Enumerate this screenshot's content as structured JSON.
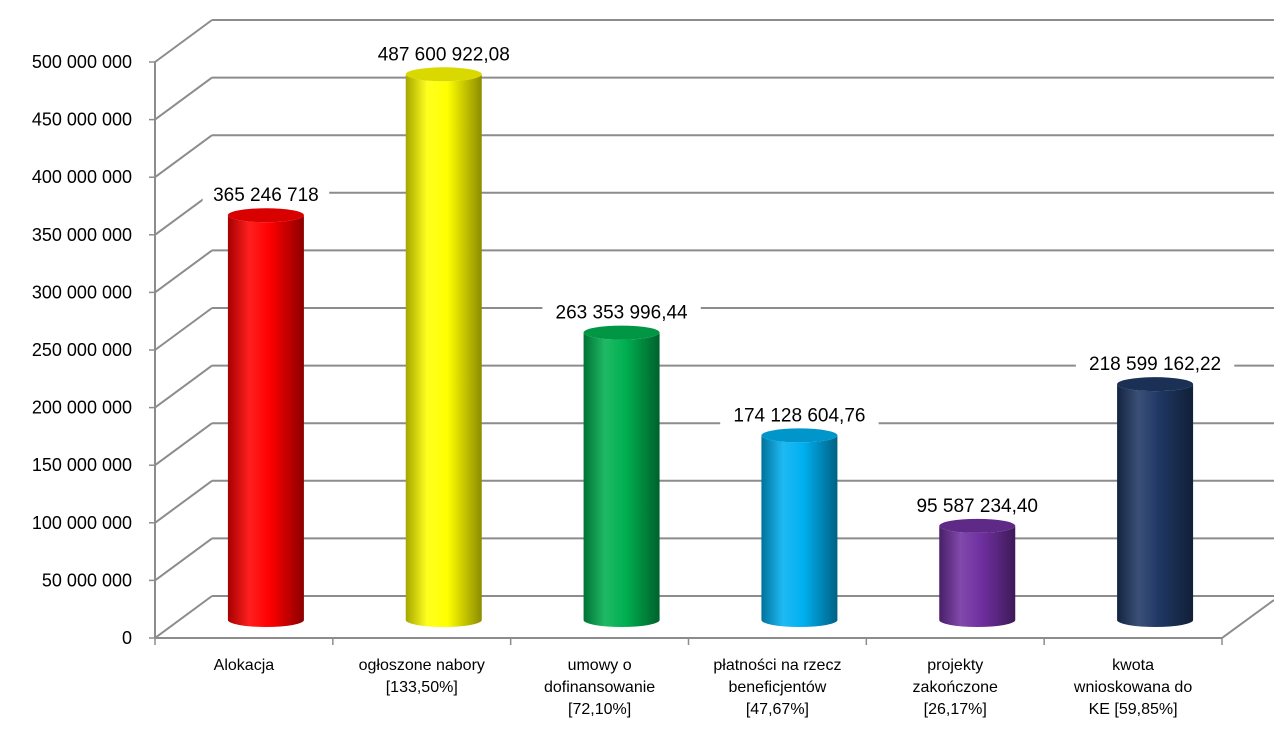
{
  "chart_data": {
    "type": "bar",
    "categories": [
      "Alokacja",
      "ogłoszone nabory [133,50%]",
      "umowy o dofinansowanie [72,10%]",
      "płatności na rzecz beneficjentów [47,67%]",
      "projekty zakończone [26,17%]",
      "kwota wnioskowana do KE [59,85%]"
    ],
    "category_lines": [
      [
        "Alokacja"
      ],
      [
        "ogłoszone nabory",
        "[133,50%]"
      ],
      [
        "umowy o",
        "dofinansowanie",
        "[72,10%]"
      ],
      [
        "płatności na rzecz",
        "beneficjentów",
        "[47,67%]"
      ],
      [
        "projekty",
        "zakończone",
        "[26,17%]"
      ],
      [
        "kwota",
        "wnioskowana do",
        "KE [59,85%]"
      ]
    ],
    "values": [
      365246718,
      487600922.08,
      263353996.44,
      174128604.76,
      95587234.4,
      218599162.22
    ],
    "data_labels": [
      "365 246 718",
      "487 600 922,08",
      "263 353 996,44",
      "174 128 604,76",
      "95 587 234,40",
      "218 599 162,22"
    ],
    "bar_colors": [
      "#ff0000",
      "#ffff00",
      "#00b050",
      "#00b0f0",
      "#7030a0",
      "#1f3864"
    ],
    "ylim": [
      0,
      500000000
    ],
    "yticks": [
      0,
      50000000,
      100000000,
      150000000,
      200000000,
      250000000,
      300000000,
      350000000,
      400000000,
      450000000,
      500000000
    ],
    "ytick_labels": [
      "0",
      "50 000 000",
      "100 000 000",
      "150 000 000",
      "200 000 000",
      "250 000 000",
      "300 000 000",
      "350 000 000",
      "400 000 000",
      "450 000 000",
      "500 000 000"
    ],
    "title": "",
    "xlabel": "",
    "ylabel": "",
    "grid": true,
    "style": "3d-cylinder"
  }
}
